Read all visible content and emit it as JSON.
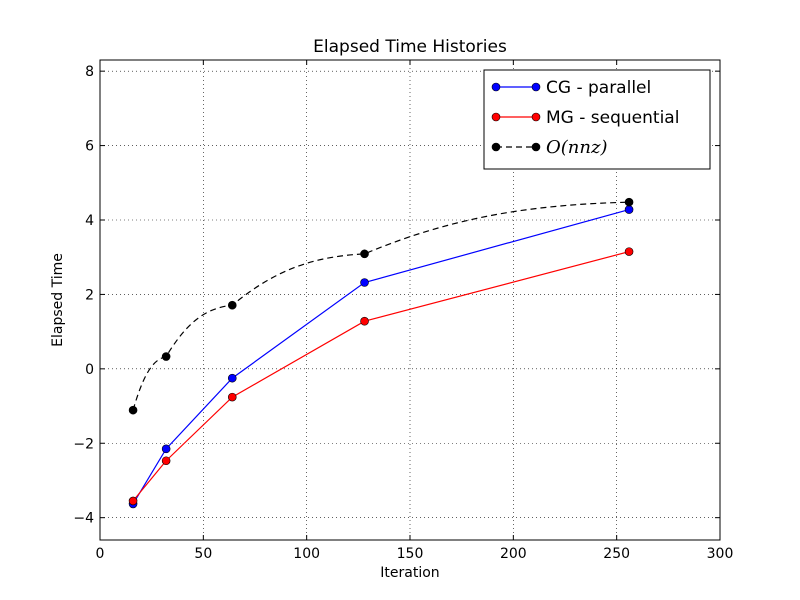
{
  "chart_data": {
    "type": "line",
    "title": "Elapsed Time Histories",
    "xlabel": "Iteration",
    "ylabel": "Elapsed Time",
    "xlim": [
      0,
      300
    ],
    "ylim": [
      -4.6,
      8.3
    ],
    "xticks": [
      0,
      50,
      100,
      150,
      200,
      250,
      300
    ],
    "yticks": [
      -4,
      -2,
      0,
      2,
      4,
      6,
      8
    ],
    "xtick_labels": [
      "0",
      "50",
      "100",
      "150",
      "200",
      "250",
      "300"
    ],
    "ytick_labels": [
      "−4",
      "−2",
      "0",
      "2",
      "4",
      "6",
      "8"
    ],
    "grid": true,
    "legend_position": "top-right",
    "series": [
      {
        "name": "CG - parallel",
        "color": "#0000ff",
        "dash": "solid",
        "x": [
          16,
          32,
          64,
          128,
          256
        ],
        "y": [
          -3.63,
          -2.15,
          -0.25,
          2.32,
          4.28
        ]
      },
      {
        "name": "MG - sequential",
        "color": "#ff0000",
        "dash": "solid",
        "x": [
          16,
          32,
          64,
          128,
          256
        ],
        "y": [
          -3.55,
          -2.47,
          -0.76,
          1.28,
          3.15
        ]
      },
      {
        "name": "O(nnz)",
        "color": "#000000",
        "dash": "dashed",
        "x": [
          16,
          32,
          64,
          128,
          256
        ],
        "y": [
          -1.11,
          0.33,
          1.71,
          3.09,
          4.48
        ]
      }
    ]
  }
}
